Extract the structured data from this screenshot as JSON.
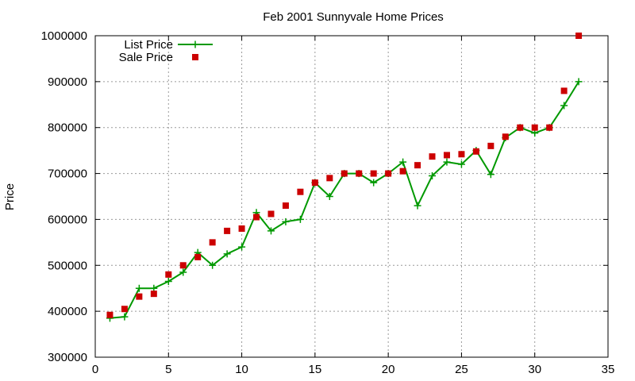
{
  "chart_data": {
    "type": "line",
    "title": "Feb 2001 Sunnyvale Home Prices",
    "xlabel": "",
    "ylabel": "Price",
    "xlim": [
      0,
      35
    ],
    "ylim": [
      300000,
      1000000
    ],
    "x_ticks": [
      0,
      5,
      10,
      15,
      20,
      25,
      30,
      35
    ],
    "y_ticks": [
      300000,
      400000,
      500000,
      600000,
      700000,
      800000,
      900000,
      1000000
    ],
    "grid": true,
    "legend_position": "top-left",
    "series": [
      {
        "name": "List Price",
        "style": "line-with-plus-markers",
        "color": "#009900",
        "x": [
          1,
          2,
          3,
          4,
          5,
          6,
          7,
          8,
          9,
          10,
          11,
          12,
          13,
          14,
          15,
          16,
          17,
          18,
          19,
          20,
          21,
          22,
          23,
          24,
          25,
          26,
          27,
          28,
          29,
          30,
          31,
          32,
          33
        ],
        "values": [
          385000,
          388000,
          450000,
          450000,
          465000,
          485000,
          528000,
          500000,
          525000,
          540000,
          615000,
          575000,
          595000,
          600000,
          680000,
          650000,
          700000,
          700000,
          680000,
          700000,
          725000,
          630000,
          695000,
          725000,
          720000,
          750000,
          698000,
          778000,
          800000,
          788000,
          800000,
          848000,
          900000
        ]
      },
      {
        "name": "Sale Price",
        "style": "square-markers",
        "color": "#cc0000",
        "x": [
          1,
          2,
          3,
          4,
          5,
          6,
          7,
          8,
          9,
          10,
          11,
          12,
          13,
          14,
          15,
          16,
          17,
          18,
          19,
          20,
          21,
          22,
          23,
          24,
          25,
          26,
          27,
          28,
          29,
          30,
          31,
          32,
          33
        ],
        "values": [
          392000,
          405000,
          432000,
          438000,
          480000,
          500000,
          518000,
          550000,
          575000,
          580000,
          605000,
          612000,
          630000,
          660000,
          680000,
          690000,
          700000,
          700000,
          700000,
          700000,
          705000,
          718000,
          737000,
          740000,
          742000,
          748000,
          760000,
          780000,
          800000,
          800000,
          800000,
          880000,
          1000000
        ]
      }
    ]
  }
}
